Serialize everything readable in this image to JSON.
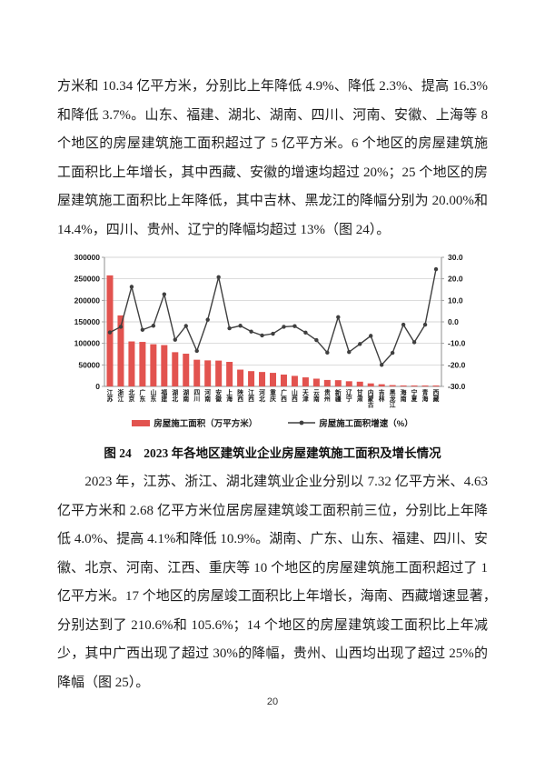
{
  "page": {
    "number": "20"
  },
  "paragraph1": {
    "lines": [
      "方米和 10.34 亿平方米，分别比上年降低 4.9%、降低 2.3%、提高 16.3%",
      "和降低 3.7%。山东、福建、湖北、湖南、四川、河南、安徽、上海等 8",
      "个地区的房屋建筑施工面积超过了 5 亿平方米。6 个地区的房屋建筑施",
      "工面积比上年增长，其中西藏、安徽的增速均超过 20%；25 个地区的房",
      "屋建筑施工面积比上年降低，其中吉林、黑龙江的降幅分别为 20.00%和",
      "14.4%，四川、贵州、辽宁的降幅均超过 13%（图 24）。"
    ]
  },
  "figure": {
    "caption": "图 24　2023 年各地区建筑业企业房屋建筑施工面积及增长情况"
  },
  "paragraph2": {
    "lines": [
      "　　2023 年，江苏、浙江、湖北建筑业企业分别以 7.32 亿平方米、4.63",
      "亿平方米和 2.68 亿平方米位居房屋建筑竣工面积前三位，分别比上年降",
      "低 4.0%、提高 4.1%和降低 10.9%。湖南、广东、山东、福建、四川、安",
      "徽、北京、河南、江西、重庆等 10 个地区的房屋建筑施工面积超过了 1",
      "亿平方米。17 个地区的房屋竣工面积比上年增长，海南、西藏增速显著，",
      "分别达到了 210.6%和 105.6%；14 个地区的房屋建筑竣工面积比上年减",
      "少，其中广西出现了超过 30%的降幅，贵州、山西均出现了超过 25%的",
      "降幅（图 25）。"
    ]
  },
  "chart_data": {
    "type": "bar",
    "title": "2023年各地区建筑业企业房屋建筑施工面积及增长情况",
    "categories": [
      "江苏",
      "浙江",
      "北京",
      "广东",
      "山东",
      "福建",
      "湖北",
      "湖南",
      "四川",
      "河南",
      "安徽",
      "上海",
      "陕西",
      "江西",
      "河北",
      "重庆",
      "广西",
      "山西",
      "天津",
      "云南",
      "贵州",
      "新疆",
      "辽宁",
      "甘肃",
      "内蒙古",
      "吉林",
      "黑龙江",
      "海南",
      "宁夏",
      "青海",
      "西藏"
    ],
    "series": [
      {
        "name": "房屋施工面积（万平方米）",
        "type": "bar",
        "axis": "left",
        "values": [
          258000,
          165000,
          104500,
          103400,
          98000,
          96000,
          79500,
          76000,
          62000,
          60500,
          60000,
          57000,
          39000,
          35500,
          33500,
          31500,
          27500,
          24500,
          21000,
          18000,
          15000,
          14500,
          12000,
          11000,
          7000,
          5000,
          3000,
          2200,
          1700,
          1200,
          600
        ]
      },
      {
        "name": "房屋施工面积增速 (%)",
        "type": "line",
        "axis": "right",
        "values": [
          -4.9,
          -2.3,
          16.3,
          -3.7,
          -1.8,
          12.8,
          -8.3,
          -1.9,
          -13.5,
          1.0,
          20.8,
          -3.0,
          -1.8,
          -4.5,
          -6.3,
          -5.5,
          -2.3,
          -2.0,
          -5.0,
          -8.5,
          -14.3,
          2.2,
          -14.0,
          -10.3,
          -6.5,
          -20.0,
          -14.4,
          -1.3,
          -9.5,
          -1.3,
          24.5
        ]
      }
    ],
    "left_axis": {
      "min": 0,
      "max": 300000,
      "step": 50000,
      "ticks": [
        "300000",
        "250000",
        "200000",
        "150000",
        "100000",
        "50000",
        "0"
      ]
    },
    "right_axis": {
      "min": -30,
      "max": 30,
      "step": 10,
      "ticks": [
        "30.0",
        "20.0",
        "10.0",
        "0.0",
        "-10.0",
        "-20.0",
        "-30.0"
      ]
    },
    "legend": [
      "房屋施工面积（万平方米）",
      "房屋施工面积增速（%）"
    ],
    "grid": true,
    "legend_position": "bottom",
    "colors": {
      "bar": "#e2534f",
      "line": "#3f3f3f",
      "grid": "#c8c8c8",
      "axis": "#8f8f8f",
      "tick_text": "#1a1a1a"
    }
  }
}
